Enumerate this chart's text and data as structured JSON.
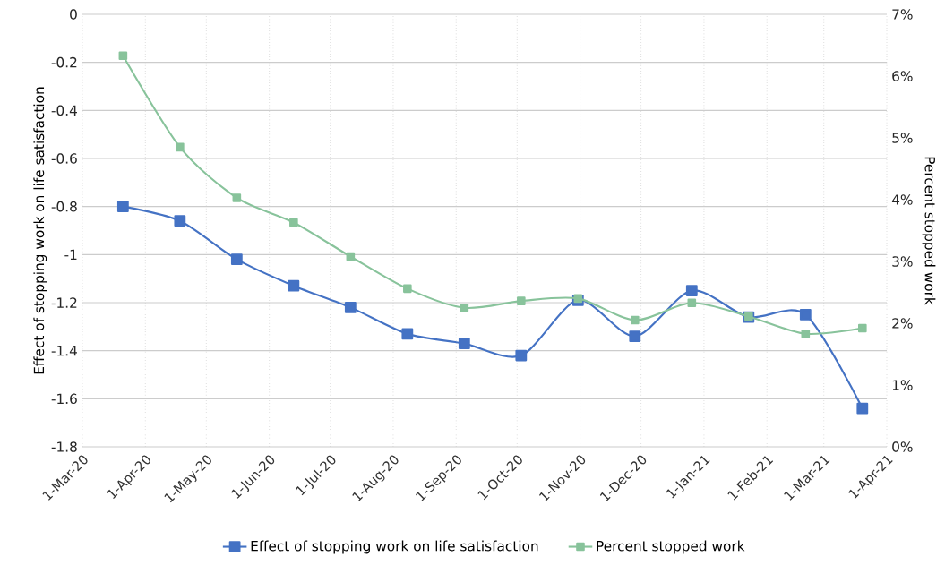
{
  "chart_data": {
    "type": "line",
    "ylabel": "Effect of stopping work on life satisfaction",
    "y2label": "Percent stopped work",
    "x": [
      "2020-03-21",
      "2020-04-18",
      "2020-05-16",
      "2020-06-13",
      "2020-07-11",
      "2020-08-08",
      "2020-09-05",
      "2020-10-03",
      "2020-10-31",
      "2020-11-28",
      "2020-12-26",
      "2021-01-23",
      "2021-02-20",
      "2021-03-20"
    ],
    "series": [
      {
        "name": "Effect of stopping work on life satisfaction",
        "color": "#4472c4",
        "values": [
          -0.8,
          -0.86,
          -1.02,
          -1.13,
          -1.22,
          -1.33,
          -1.37,
          -1.42,
          -1.19,
          -1.34,
          -1.15,
          -1.26,
          -1.25,
          -1.64
        ]
      },
      {
        "name": "Percent stopped work",
        "color": "#88c39b",
        "axis": "y2",
        "values": [
          6.33,
          4.85,
          4.03,
          3.63,
          3.08,
          2.56,
          2.25,
          2.36,
          2.4,
          2.05,
          2.33,
          2.11,
          1.83,
          1.92
        ]
      }
    ],
    "xlim": [
      "2020-03-01",
      "2021-04-01"
    ],
    "xticks": [
      {
        "value": "2020-03-01",
        "label": "1-Mar-20"
      },
      {
        "value": "2020-04-01",
        "label": "1-Apr-20"
      },
      {
        "value": "2020-05-01",
        "label": "1-May-20"
      },
      {
        "value": "2020-06-01",
        "label": "1-Jun-20"
      },
      {
        "value": "2020-07-01",
        "label": "1-Jul-20"
      },
      {
        "value": "2020-08-01",
        "label": "1-Aug-20"
      },
      {
        "value": "2020-09-01",
        "label": "1-Sep-20"
      },
      {
        "value": "2020-10-01",
        "label": "1-Oct-20"
      },
      {
        "value": "2020-11-01",
        "label": "1-Nov-20"
      },
      {
        "value": "2020-12-01",
        "label": "1-Dec-20"
      },
      {
        "value": "2021-01-01",
        "label": "1-Jan-21"
      },
      {
        "value": "2021-02-01",
        "label": "1-Feb-21"
      },
      {
        "value": "2021-03-01",
        "label": "1-Mar-21"
      },
      {
        "value": "2021-04-01",
        "label": "1-Apr-21"
      }
    ],
    "ylim": [
      -1.8,
      0
    ],
    "yticks": [
      0,
      -0.2,
      -0.4,
      -0.6,
      -0.8,
      -1,
      -1.2,
      -1.4,
      -1.6,
      -1.8
    ],
    "y2lim": [
      0,
      7
    ],
    "y2ticks": [
      {
        "value": 0,
        "label": "0%"
      },
      {
        "value": 1,
        "label": "1%"
      },
      {
        "value": 2,
        "label": "2%"
      },
      {
        "value": 3,
        "label": "3%"
      },
      {
        "value": 4,
        "label": "4%"
      },
      {
        "value": 5,
        "label": "5%"
      },
      {
        "value": 6,
        "label": "6%"
      },
      {
        "value": 7,
        "label": "7%"
      }
    ],
    "grid": true,
    "legend": "bottom",
    "marker": "square",
    "line_style": "solid"
  }
}
